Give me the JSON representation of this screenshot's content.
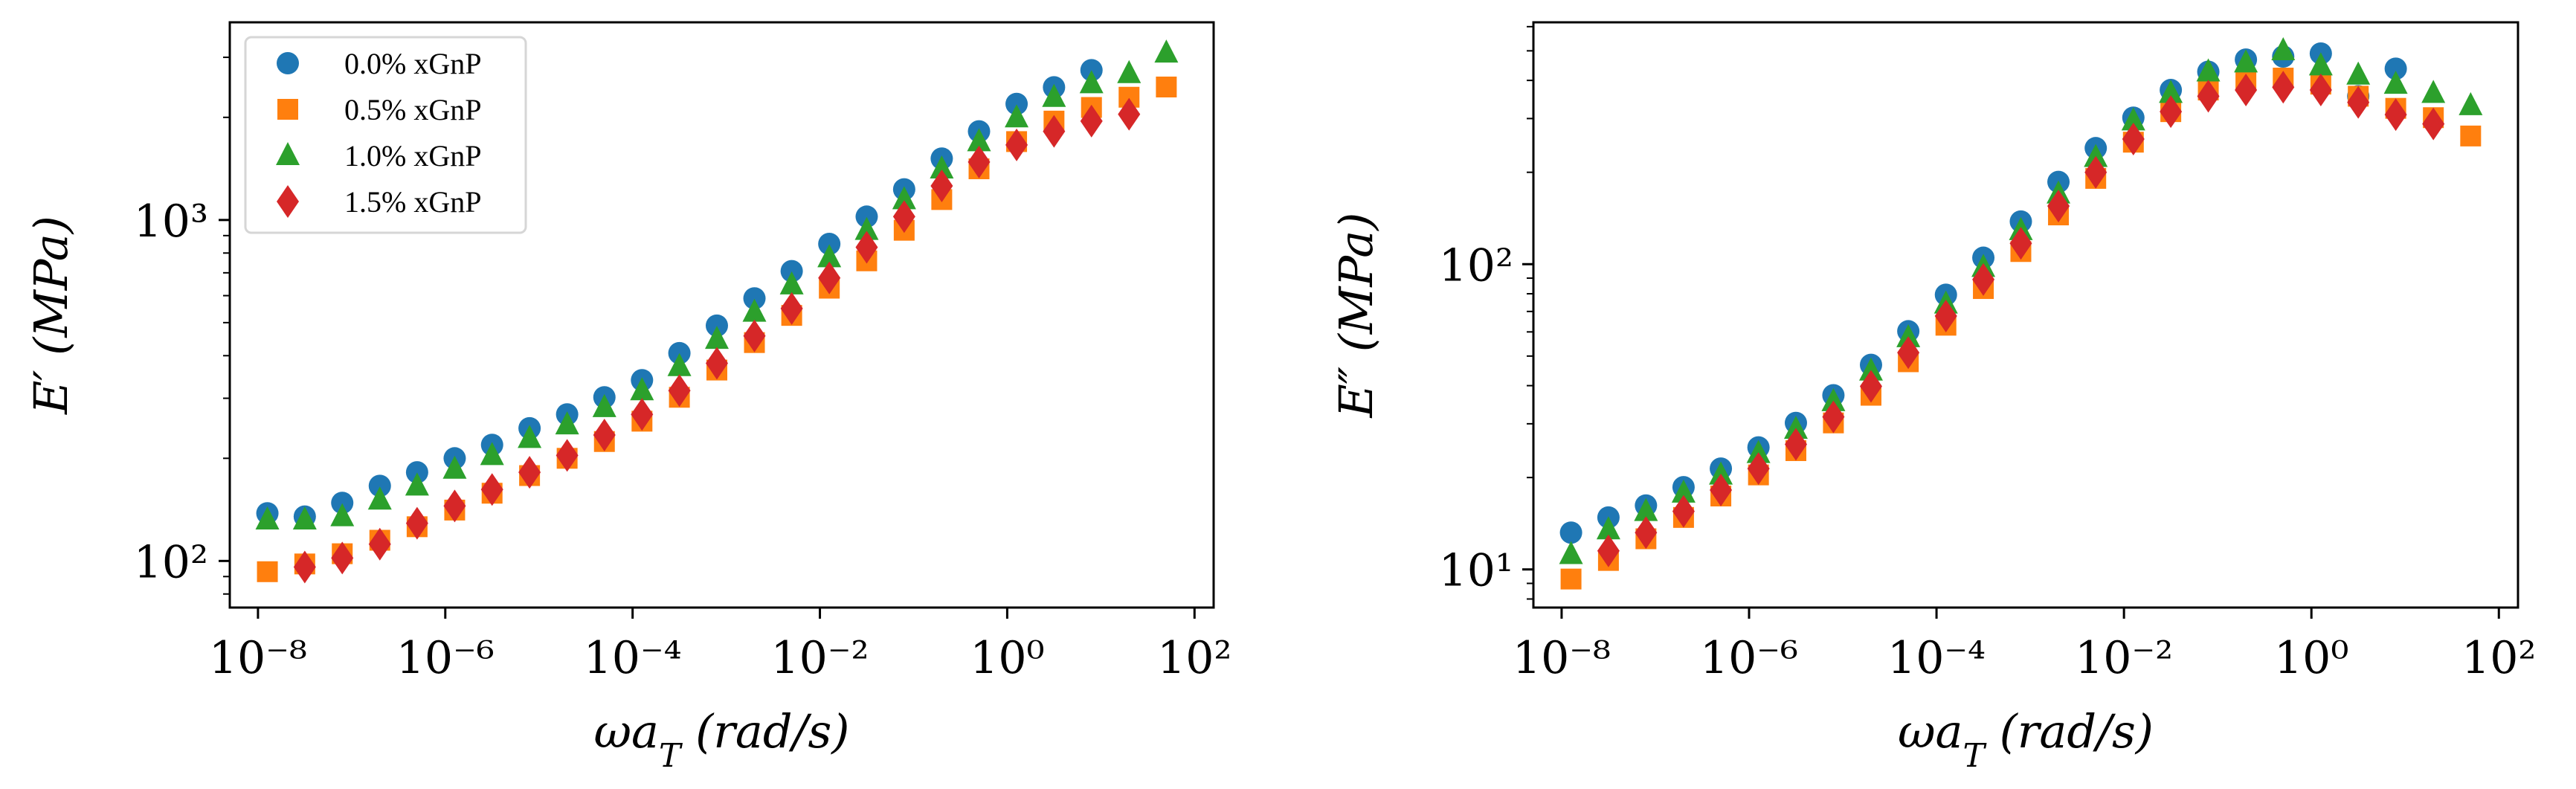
{
  "chart_data": [
    {
      "type": "scatter",
      "title": "",
      "xlabel": "ωa_T (rad/s)",
      "ylabel": "E′ (MPa)",
      "xscale": "log",
      "yscale": "log",
      "xlim": [
        5e-09,
        160
      ],
      "ylim": [
        73,
        3800
      ],
      "x_ticks": [
        1e-08,
        1e-06,
        0.0001,
        0.01,
        1,
        100
      ],
      "x_tick_labels": [
        "10⁻⁸",
        "10⁻⁶",
        "10⁻⁴",
        "10⁻²",
        "10⁰",
        "10²"
      ],
      "y_ticks": [
        100,
        1000
      ],
      "y_tick_labels": [
        "10²",
        "10³"
      ],
      "grid": false,
      "legend": "top-left",
      "series": [
        {
          "name": "0.0% xGnP",
          "marker": "circle",
          "color": "#1f77b4",
          "x": [
            1.26e-08,
            3.16e-08,
            7.94e-08,
            2e-07,
            5e-07,
            1.26e-06,
            3.16e-06,
            7.94e-06,
            2e-05,
            5e-05,
            0.000126,
            0.000316,
            0.000794,
            0.002,
            0.005,
            0.0126,
            0.0316,
            0.0794,
            0.2,
            0.5,
            1.26,
            3.16,
            7.94
          ],
          "y": [
            138,
            135,
            148,
            166,
            182,
            200,
            219,
            245,
            269,
            302,
            339,
            407,
            490,
            589,
            708,
            851,
            1023,
            1230,
            1514,
            1820,
            2190,
            2450,
            2750
          ]
        },
        {
          "name": "0.5% xGnP",
          "marker": "square",
          "color": "#ff7f0e",
          "x": [
            1.26e-08,
            3.16e-08,
            7.94e-08,
            2e-07,
            5e-07,
            1.26e-06,
            3.16e-06,
            7.94e-06,
            2e-05,
            5e-05,
            0.000126,
            0.000316,
            0.000794,
            0.002,
            0.005,
            0.0126,
            0.0316,
            0.0794,
            0.2,
            0.5,
            1.26,
            3.16,
            7.94,
            20,
            50
          ],
          "y": [
            93,
            98,
            105,
            115,
            126,
            141,
            158,
            178,
            200,
            224,
            257,
            302,
            363,
            437,
            525,
            631,
            759,
            933,
            1148,
            1413,
            1698,
            1950,
            2138,
            2291,
            2455
          ]
        },
        {
          "name": "1.0% xGnP",
          "marker": "triangle",
          "color": "#2ca02c",
          "x": [
            1.26e-08,
            3.16e-08,
            7.94e-08,
            2e-07,
            5e-07,
            1.26e-06,
            3.16e-06,
            7.94e-06,
            2e-05,
            5e-05,
            0.000126,
            0.000316,
            0.000794,
            0.002,
            0.005,
            0.0126,
            0.0316,
            0.0794,
            0.2,
            0.5,
            1.26,
            3.16,
            7.94,
            20,
            50
          ],
          "y": [
            132,
            132,
            135,
            151,
            166,
            186,
            204,
            229,
            251,
            282,
            316,
            372,
            447,
            537,
            646,
            776,
            933,
            1148,
            1413,
            1698,
            1995,
            2291,
            2512,
            2690,
            3090
          ]
        },
        {
          "name": "1.5% xGnP",
          "marker": "diamond",
          "color": "#d62728",
          "x": [
            3.16e-08,
            7.94e-08,
            2e-07,
            5e-07,
            1.26e-06,
            3.16e-06,
            7.94e-06,
            2e-05,
            5e-05,
            0.000126,
            0.000316,
            0.000794,
            0.002,
            0.005,
            0.0126,
            0.0316,
            0.0794,
            0.2,
            0.5,
            1.26,
            3.16,
            7.94,
            20
          ],
          "y": [
            96,
            102,
            112,
            129,
            145,
            162,
            182,
            204,
            234,
            269,
            316,
            380,
            457,
            550,
            676,
            832,
            1023,
            1259,
            1479,
            1660,
            1820,
            1950,
            2042
          ]
        }
      ]
    },
    {
      "type": "scatter",
      "title": "",
      "xlabel": "ωa_T (rad/s)",
      "ylabel": "E″ (MPa)",
      "xscale": "log",
      "yscale": "log",
      "xlim": [
        5e-09,
        160
      ],
      "ylim": [
        7.5,
        620
      ],
      "x_ticks": [
        1e-08,
        1e-06,
        0.0001,
        0.01,
        1,
        100
      ],
      "x_tick_labels": [
        "10⁻⁸",
        "10⁻⁶",
        "10⁻⁴",
        "10⁻²",
        "10⁰",
        "10²"
      ],
      "y_ticks": [
        10,
        100
      ],
      "y_tick_labels": [
        "10¹",
        "10²"
      ],
      "grid": false,
      "series": [
        {
          "marker": "circle",
          "color": "#1f77b4",
          "x": [
            1.26e-08,
            3.16e-08,
            7.94e-08,
            2e-07,
            5e-07,
            1.26e-06,
            3.16e-06,
            7.94e-06,
            2e-05,
            5e-05,
            0.000126,
            0.000316,
            0.000794,
            0.002,
            0.005,
            0.0126,
            0.0316,
            0.0794,
            0.2,
            0.5,
            1.26,
            3.16,
            7.94
          ],
          "y": [
            13.2,
            14.8,
            16.2,
            18.6,
            21.4,
            25.1,
            30.2,
            37.2,
            46.8,
            60.3,
            79.4,
            105,
            138,
            186,
            240,
            302,
            372,
            427,
            468,
            479,
            490,
            355,
            437
          ]
        },
        {
          "marker": "square",
          "color": "#ff7f0e",
          "x": [
            1.26e-08,
            3.16e-08,
            7.94e-08,
            2e-07,
            5e-07,
            1.26e-06,
            3.16e-06,
            7.94e-06,
            2e-05,
            5e-05,
            0.000126,
            0.000316,
            0.000794,
            0.002,
            0.005,
            0.0126,
            0.0316,
            0.0794,
            0.2,
            0.5,
            1.26,
            3.16,
            7.94,
            20,
            50
          ],
          "y": [
            9.3,
            10.7,
            12.6,
            14.8,
            17.4,
            20.4,
            24.5,
            30.2,
            37.2,
            47.9,
            63.1,
            83.2,
            110,
            145,
            191,
            251,
            316,
            372,
            398,
            407,
            389,
            355,
            324,
            302,
            263
          ]
        },
        {
          "marker": "triangle",
          "color": "#2ca02c",
          "x": [
            1.26e-08,
            3.16e-08,
            7.94e-08,
            2e-07,
            5e-07,
            1.26e-06,
            3.16e-06,
            7.94e-06,
            2e-05,
            5e-05,
            0.000126,
            0.000316,
            0.000794,
            0.002,
            0.005,
            0.0126,
            0.0316,
            0.0794,
            0.2,
            0.5,
            1.26,
            3.16,
            7.94,
            20,
            50
          ],
          "y": [
            11.2,
            13.5,
            15.5,
            17.8,
            20.4,
            24.0,
            28.8,
            35.5,
            44.7,
            57.5,
            74.1,
            97.7,
            129,
            170,
            224,
            295,
            363,
            427,
            457,
            501,
            447,
            417,
            389,
            363,
            331
          ]
        },
        {
          "marker": "diamond",
          "color": "#d62728",
          "x": [
            3.16e-08,
            7.94e-08,
            2e-07,
            5e-07,
            1.26e-06,
            3.16e-06,
            7.94e-06,
            2e-05,
            5e-05,
            0.000126,
            0.000316,
            0.000794,
            0.002,
            0.005,
            0.0126,
            0.0316,
            0.0794,
            0.2,
            0.5,
            1.26,
            3.16,
            7.94,
            20
          ],
          "y": [
            11.5,
            13.2,
            15.5,
            18.2,
            21.4,
            25.7,
            31.6,
            39.8,
            51.3,
            67.6,
            89.1,
            117,
            155,
            200,
            257,
            316,
            355,
            372,
            380,
            372,
            339,
            309,
            288
          ]
        }
      ]
    }
  ]
}
